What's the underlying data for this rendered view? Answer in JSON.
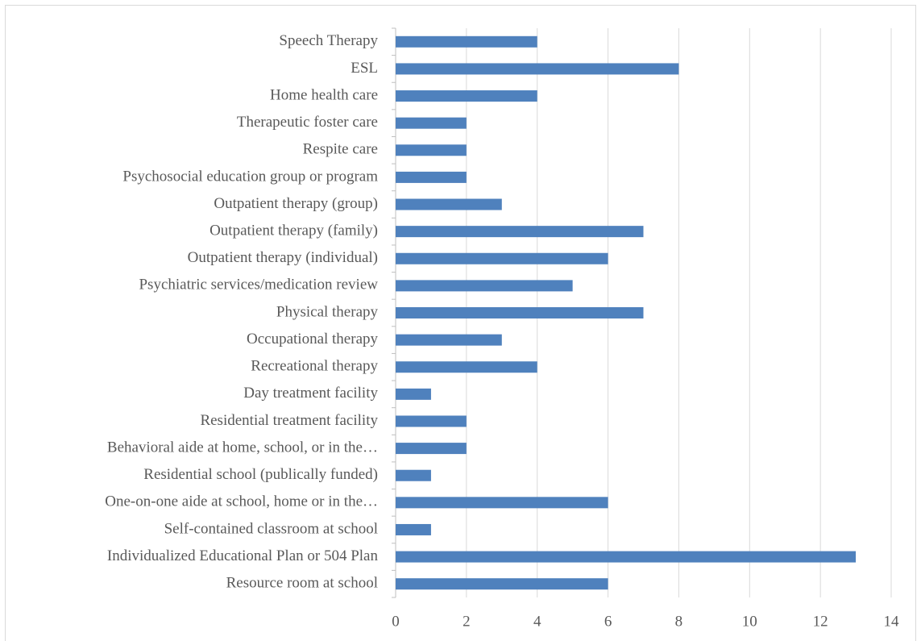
{
  "chart_data": {
    "type": "bar",
    "orientation": "horizontal",
    "categories": [
      "Speech Therapy",
      "ESL",
      "Home health care",
      "Therapeutic foster care",
      "Respite care",
      "Psychosocial education group or program",
      "Outpatient therapy (group)",
      "Outpatient therapy (family)",
      "Outpatient therapy (individual)",
      "Psychiatric services/medication review",
      "Physical therapy",
      "Occupational therapy",
      "Recreational therapy",
      "Day treatment facility",
      "Residential treatment facility",
      "Behavioral aide at home, school, or in the…",
      "Residential school (publically funded)",
      "One-on-one aide at school, home or in the…",
      "Self-contained classroom at school",
      "Individualized Educational Plan or 504 Plan",
      "Resource room at school"
    ],
    "values": [
      4,
      8,
      4,
      2,
      2,
      2,
      3,
      7,
      6,
      5,
      7,
      3,
      4,
      1,
      2,
      2,
      1,
      6,
      1,
      13,
      6
    ],
    "color": "#4f81bd",
    "xlim": [
      0,
      14
    ],
    "xticks": [
      0,
      2,
      4,
      6,
      8,
      10,
      12,
      14
    ],
    "grid": true
  }
}
